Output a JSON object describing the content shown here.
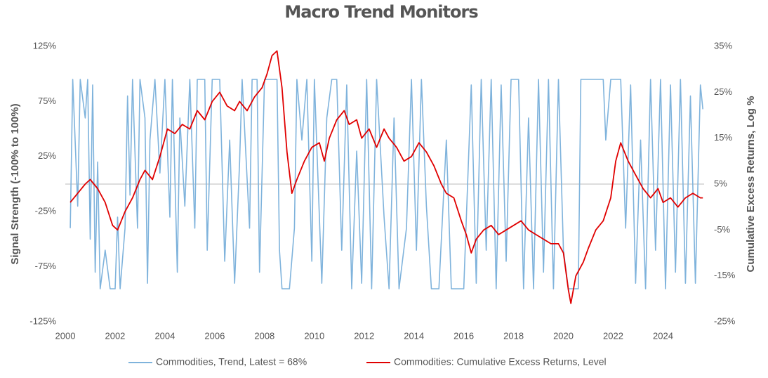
{
  "chart_data": {
    "type": "line",
    "title": "Macro Trend Monitors",
    "y_label": "Signal Strength (-100% to 100%)",
    "y2_label": "Cumulative Excess Returns, Log %",
    "xlim": [
      2000,
      2025.65
    ],
    "xticks": [
      2000,
      2002,
      2004,
      2006,
      2008,
      2010,
      2012,
      2014,
      2016,
      2018,
      2020,
      2022,
      2024
    ],
    "ylim": [
      -125,
      125
    ],
    "yticks": [
      {
        "value": -125,
        "label": "-125%"
      },
      {
        "value": -75,
        "label": "-75%"
      },
      {
        "value": -25,
        "label": "-25%"
      },
      {
        "value": 25,
        "label": "25%"
      },
      {
        "value": 75,
        "label": "75%"
      },
      {
        "value": 125,
        "label": "125%"
      }
    ],
    "y2lim": [
      -25,
      35
    ],
    "y2ticks": [
      {
        "value": -25,
        "label": "-25%"
      },
      {
        "value": -15,
        "label": "-15%"
      },
      {
        "value": -5,
        "label": "-5%"
      },
      {
        "value": 5,
        "label": "5%"
      },
      {
        "value": 15,
        "label": "15%"
      },
      {
        "value": 25,
        "label": "25%"
      },
      {
        "value": 35,
        "label": "35%"
      }
    ],
    "hline": 0,
    "legend": "bottom",
    "series": [
      {
        "name": "Commodities, Trend, Latest = 68%",
        "color": "#7fb3dc",
        "axis": "y",
        "x": [
          2000.2,
          2000.3,
          2000.5,
          2000.6,
          2000.8,
          2000.9,
          2001.0,
          2001.1,
          2001.2,
          2001.3,
          2001.4,
          2001.6,
          2001.8,
          2002.0,
          2002.1,
          2002.2,
          2002.4,
          2002.5,
          2002.6,
          2002.7,
          2002.9,
          2003.0,
          2003.2,
          2003.3,
          2003.4,
          2003.6,
          2003.8,
          2004.0,
          2004.2,
          2004.3,
          2004.5,
          2004.6,
          2004.8,
          2005.0,
          2005.2,
          2005.3,
          2005.6,
          2005.7,
          2005.9,
          2006.2,
          2006.4,
          2006.6,
          2006.8,
          2007.0,
          2007.1,
          2007.4,
          2007.5,
          2007.7,
          2007.8,
          2008.0,
          2008.5,
          2008.6,
          2008.7,
          2009.0,
          2009.2,
          2009.3,
          2009.5,
          2009.7,
          2009.9,
          2010.0,
          2010.3,
          2010.5,
          2010.7,
          2010.9,
          2011.1,
          2011.3,
          2011.5,
          2011.7,
          2011.9,
          2012.1,
          2012.3,
          2012.5,
          2012.8,
          2013.0,
          2013.2,
          2013.4,
          2013.7,
          2013.9,
          2014.1,
          2014.3,
          2014.5,
          2014.7,
          2015.0,
          2015.3,
          2015.5,
          2016.0,
          2016.3,
          2016.5,
          2016.7,
          2016.9,
          2017.1,
          2017.3,
          2017.5,
          2017.7,
          2017.9,
          2018.2,
          2018.4,
          2018.6,
          2018.8,
          2019.0,
          2019.2,
          2019.4,
          2019.6,
          2019.8,
          2020.0,
          2020.2,
          2020.6,
          2020.7,
          2021.0,
          2021.6,
          2021.7,
          2021.9,
          2022.3,
          2022.5,
          2022.7,
          2022.9,
          2023.1,
          2023.3,
          2023.5,
          2023.7,
          2023.9,
          2024.1,
          2024.3,
          2024.5,
          2024.7,
          2024.9,
          2025.1,
          2025.3,
          2025.5,
          2025.6
        ],
        "values": [
          -40,
          95,
          -20,
          95,
          60,
          95,
          -50,
          90,
          -80,
          20,
          -95,
          -60,
          -95,
          -95,
          -30,
          -95,
          -40,
          80,
          -10,
          95,
          -40,
          95,
          60,
          -90,
          40,
          95,
          10,
          95,
          -30,
          95,
          -80,
          60,
          -20,
          95,
          -40,
          95,
          95,
          -60,
          95,
          95,
          -70,
          40,
          -90,
          20,
          95,
          -40,
          95,
          95,
          -80,
          95,
          95,
          -60,
          -95,
          -95,
          -40,
          95,
          40,
          95,
          -70,
          95,
          -90,
          60,
          95,
          95,
          -60,
          90,
          -95,
          30,
          -90,
          95,
          -95,
          95,
          -30,
          -95,
          60,
          -95,
          -40,
          95,
          -60,
          95,
          -20,
          -95,
          -95,
          40,
          -95,
          -95,
          90,
          -90,
          95,
          -60,
          95,
          -95,
          90,
          -70,
          95,
          95,
          -95,
          60,
          -95,
          95,
          -80,
          95,
          -95,
          95,
          -60,
          -95,
          -95,
          95,
          95,
          95,
          40,
          95,
          95,
          -40,
          90,
          -90,
          40,
          -95,
          95,
          -60,
          95,
          -95,
          90,
          -80,
          95,
          -90,
          80,
          -90,
          90,
          68
        ]
      },
      {
        "name": "Commodities: Cumulative Excess Returns, Level",
        "color": "#e00000",
        "axis": "y2",
        "x": [
          2000.2,
          2000.5,
          2000.8,
          2001.0,
          2001.3,
          2001.6,
          2001.9,
          2002.1,
          2002.4,
          2002.7,
          2003.0,
          2003.2,
          2003.5,
          2003.8,
          2004.1,
          2004.4,
          2004.7,
          2005.0,
          2005.3,
          2005.6,
          2005.9,
          2006.2,
          2006.5,
          2006.8,
          2007.0,
          2007.3,
          2007.6,
          2007.9,
          2008.1,
          2008.3,
          2008.5,
          2008.7,
          2008.9,
          2009.1,
          2009.3,
          2009.6,
          2009.9,
          2010.2,
          2010.4,
          2010.6,
          2010.9,
          2011.2,
          2011.4,
          2011.7,
          2011.9,
          2012.2,
          2012.5,
          2012.8,
          2013.0,
          2013.3,
          2013.6,
          2013.9,
          2014.2,
          2014.5,
          2014.8,
          2015.1,
          2015.3,
          2015.6,
          2015.9,
          2016.1,
          2016.3,
          2016.5,
          2016.8,
          2017.1,
          2017.4,
          2017.7,
          2018.0,
          2018.3,
          2018.6,
          2018.9,
          2019.2,
          2019.5,
          2019.8,
          2020.0,
          2020.2,
          2020.3,
          2020.5,
          2020.8,
          2021.0,
          2021.3,
          2021.6,
          2021.9,
          2022.1,
          2022.3,
          2022.6,
          2022.9,
          2023.2,
          2023.5,
          2023.8,
          2024.0,
          2024.3,
          2024.6,
          2024.9,
          2025.2,
          2025.5,
          2025.6
        ],
        "values": [
          1,
          3,
          5,
          6,
          4,
          1,
          -4,
          -5,
          -1,
          2,
          6,
          8,
          6,
          11,
          17,
          16,
          18,
          17,
          21,
          19,
          23,
          25,
          22,
          21,
          23,
          21,
          24,
          26,
          29,
          33,
          34,
          26,
          12,
          3,
          6,
          10,
          13,
          14,
          10,
          15,
          19,
          21,
          18,
          19,
          15,
          17,
          13,
          17,
          15,
          13,
          10,
          11,
          14,
          12,
          9,
          5,
          3,
          2,
          -3,
          -6,
          -10,
          -7,
          -5,
          -4,
          -6,
          -5,
          -4,
          -3,
          -5,
          -6,
          -7,
          -8,
          -8,
          -10,
          -18,
          -21,
          -15,
          -12,
          -9,
          -5,
          -3,
          2,
          10,
          14,
          10,
          7,
          4,
          2,
          4,
          1,
          2,
          0,
          2,
          3,
          2,
          2
        ]
      }
    ]
  }
}
